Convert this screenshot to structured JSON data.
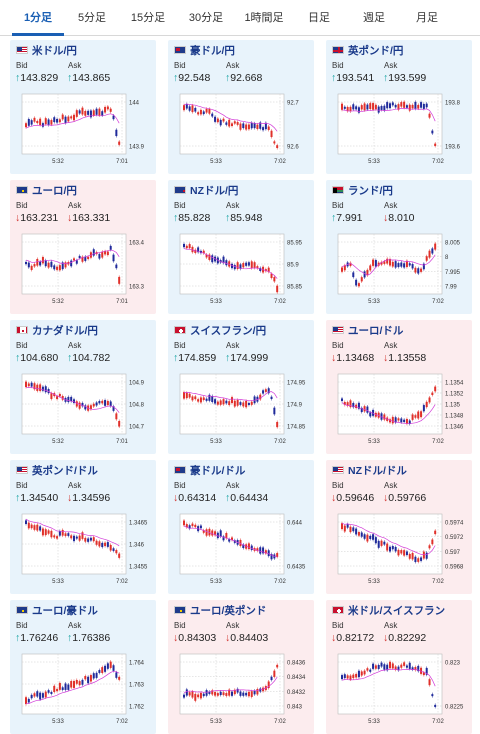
{
  "tabs": [
    "1分足",
    "5分足",
    "15分足",
    "30分足",
    "1時間足",
    "日足",
    "週足",
    "月足"
  ],
  "active_tab": 0,
  "labels": {
    "bid": "Bid",
    "ask": "Ask"
  },
  "colors": {
    "up": "#e0302a",
    "down": "#1f2a9a",
    "ma": "#d23ad8",
    "accent": "#1a5fb4"
  },
  "cards": [
    {
      "name": "米ドル/円",
      "bid": "143.829",
      "ask": "143.865",
      "bid_dir": "up",
      "ask_dir": "up",
      "flag": "us",
      "bg": "blue",
      "x_ticks": [
        "5:32",
        "7:01"
      ],
      "y_ticks": [
        "144",
        "143.9"
      ]
    },
    {
      "name": "豪ドル/円",
      "bid": "92.548",
      "ask": "92.668",
      "bid_dir": "up",
      "ask_dir": "up",
      "flag": "au",
      "bg": "blue",
      "x_ticks": [
        "5:33",
        "7:02"
      ],
      "y_ticks": [
        "92.7",
        "92.6"
      ]
    },
    {
      "name": "英ポンド/円",
      "bid": "193.541",
      "ask": "193.599",
      "bid_dir": "up",
      "ask_dir": "up",
      "flag": "gb",
      "bg": "blue",
      "x_ticks": [
        "5:33",
        "7:02"
      ],
      "y_ticks": [
        "193.8",
        "193.6"
      ]
    },
    {
      "name": "ユーロ/円",
      "bid": "163.231",
      "ask": "163.331",
      "bid_dir": "down",
      "ask_dir": "down",
      "flag": "eu",
      "bg": "pink",
      "x_ticks": [
        "5:32",
        "7:01"
      ],
      "y_ticks": [
        "163.4",
        "163.3"
      ]
    },
    {
      "name": "NZドル/円",
      "bid": "85.828",
      "ask": "85.948",
      "bid_dir": "up",
      "ask_dir": "up",
      "flag": "nz",
      "bg": "blue",
      "x_ticks": [
        "5:33",
        "7:02"
      ],
      "y_ticks": [
        "85.95",
        "85.9",
        "85.85"
      ]
    },
    {
      "name": "ランド/円",
      "bid": "7.991",
      "ask": "8.010",
      "bid_dir": "up",
      "ask_dir": "down",
      "flag": "za",
      "bg": "blue",
      "x_ticks": [
        "5:33",
        "7:02"
      ],
      "y_ticks": [
        "8.005",
        "8",
        "7.995",
        "7.99"
      ]
    },
    {
      "name": "カナダドル/円",
      "bid": "104.680",
      "ask": "104.782",
      "bid_dir": "up",
      "ask_dir": "up",
      "flag": "ca",
      "bg": "blue",
      "x_ticks": [
        "5:32",
        "7:01"
      ],
      "y_ticks": [
        "104.9",
        "104.8",
        "104.7"
      ]
    },
    {
      "name": "スイスフラン/円",
      "bid": "174.859",
      "ask": "174.999",
      "bid_dir": "up",
      "ask_dir": "up",
      "flag": "ch",
      "bg": "blue",
      "x_ticks": [
        "5:33",
        "7:02"
      ],
      "y_ticks": [
        "174.95",
        "174.9",
        "174.85"
      ]
    },
    {
      "name": "ユーロ/ドル",
      "bid": "1.13468",
      "ask": "1.13558",
      "bid_dir": "down",
      "ask_dir": "down",
      "flag": "us",
      "bg": "pink",
      "x_ticks": [
        "5:33",
        "7:02"
      ],
      "y_ticks": [
        "1.1354",
        "1.1352",
        "1.135",
        "1.1348",
        "1.1346"
      ]
    },
    {
      "name": "英ポンド/ドル",
      "bid": "1.34540",
      "ask": "1.34596",
      "bid_dir": "up",
      "ask_dir": "down",
      "flag": "us",
      "bg": "blue",
      "x_ticks": [
        "5:33",
        "7:02"
      ],
      "y_ticks": [
        "1.3465",
        "1.346",
        "1.3455"
      ]
    },
    {
      "name": "豪ドル/ドル",
      "bid": "0.64314",
      "ask": "0.64434",
      "bid_dir": "down",
      "ask_dir": "up",
      "flag": "au",
      "bg": "blue",
      "x_ticks": [
        "5:33",
        "7:02"
      ],
      "y_ticks": [
        "0.644",
        "0.6435"
      ]
    },
    {
      "name": "NZドル/ドル",
      "bid": "0.59646",
      "ask": "0.59766",
      "bid_dir": "down",
      "ask_dir": "down",
      "flag": "us",
      "bg": "pink",
      "x_ticks": [
        "5:33",
        "7:02"
      ],
      "y_ticks": [
        "0.5974",
        "0.5972",
        "0.597",
        "0.5968"
      ]
    },
    {
      "name": "ユーロ/豪ドル",
      "bid": "1.76246",
      "ask": "1.76386",
      "bid_dir": "up",
      "ask_dir": "up",
      "flag": "eu",
      "bg": "blue",
      "x_ticks": [
        "5:33",
        "7:02"
      ],
      "y_ticks": [
        "1.764",
        "1.763",
        "1.762"
      ]
    },
    {
      "name": "ユーロ/英ポンド",
      "bid": "0.84303",
      "ask": "0.84403",
      "bid_dir": "down",
      "ask_dir": "down",
      "flag": "eu",
      "bg": "pink",
      "x_ticks": [
        "5:33",
        "7:02"
      ],
      "y_ticks": [
        "0.8436",
        "0.8434",
        "0.8432",
        "0.843"
      ]
    },
    {
      "name": "米ドル/スイスフラン",
      "bid": "0.82172",
      "ask": "0.82292",
      "bid_dir": "down",
      "ask_dir": "down",
      "flag": "ch",
      "bg": "pink",
      "x_ticks": [
        "5:33",
        "7:02"
      ],
      "y_ticks": [
        "0.823",
        "0.8225"
      ]
    }
  ]
}
